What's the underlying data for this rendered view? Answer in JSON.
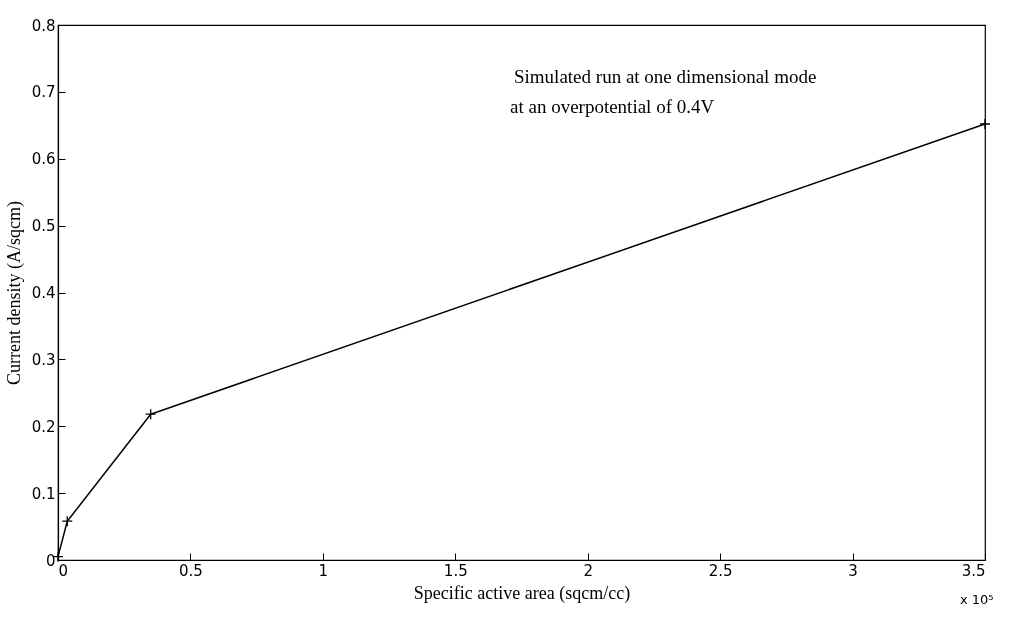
{
  "chart_data": {
    "type": "line",
    "xlabel": "Specific active area (sqcm/cc)",
    "ylabel": "Current density (A/sqcm)",
    "annotations": [
      "Simulated run at one dimensional mode",
      "at an overpotential of 0.4V",
      "x 10⁵"
    ],
    "x": [
      0,
      0.035,
      0.35,
      3.5
    ],
    "series": [
      {
        "color": "#000000",
        "values": [
          0.005,
          0.058,
          0.218,
          0.652
        ]
      }
    ],
    "xlim": [
      0,
      3.5
    ],
    "xticks": [
      0,
      0.5,
      1,
      1.5,
      2,
      2.5,
      3,
      3.5
    ],
    "ylim": [
      0,
      0.8
    ],
    "yticks": [
      0,
      0.1,
      0.2,
      0.3,
      0.4,
      0.5,
      0.6,
      0.7,
      0.8
    ],
    "marker": "cross",
    "line_style": "solid",
    "grid": false,
    "legend": false
  }
}
